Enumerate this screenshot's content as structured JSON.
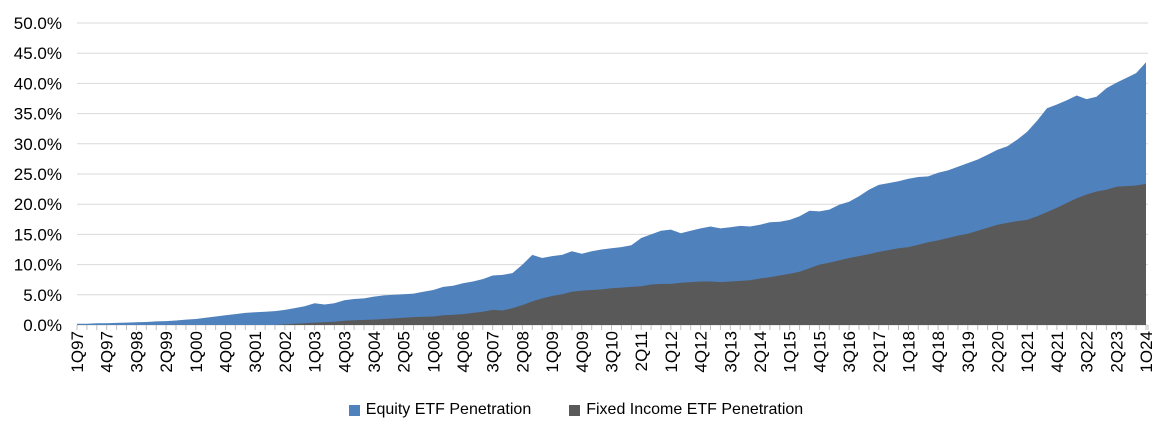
{
  "chart_data": {
    "type": "area",
    "overlay": true,
    "ylim": [
      0,
      50
    ],
    "y_tick_step": 5,
    "y_tick_labels": [
      "0.0%",
      "5.0%",
      "10.0%",
      "15.0%",
      "20.0%",
      "25.0%",
      "30.0%",
      "35.0%",
      "40.0%",
      "45.0%",
      "50.0%"
    ],
    "x_label_every": 3,
    "x_tick_labels_shown": [
      "1Q97",
      "4Q97",
      "3Q98",
      "2Q99",
      "1Q00",
      "4Q00",
      "3Q01",
      "2Q02",
      "1Q03",
      "4Q03",
      "3Q04",
      "2Q05",
      "1Q06",
      "4Q06",
      "3Q07",
      "2Q08",
      "1Q09",
      "4Q09",
      "3Q10",
      "2Q11",
      "1Q12",
      "4Q12",
      "3Q13",
      "2Q14",
      "1Q15",
      "4Q15",
      "3Q16",
      "2Q17",
      "1Q18",
      "4Q18",
      "3Q19",
      "2Q20",
      "1Q21",
      "4Q21",
      "3Q22",
      "2Q23",
      "1Q24"
    ],
    "x": [
      "1Q97",
      "2Q97",
      "3Q97",
      "4Q97",
      "1Q98",
      "2Q98",
      "3Q98",
      "4Q98",
      "1Q99",
      "2Q99",
      "3Q99",
      "4Q99",
      "1Q00",
      "2Q00",
      "3Q00",
      "4Q00",
      "1Q01",
      "2Q01",
      "3Q01",
      "4Q01",
      "1Q02",
      "2Q02",
      "3Q02",
      "4Q02",
      "1Q03",
      "2Q03",
      "3Q03",
      "4Q03",
      "1Q04",
      "2Q04",
      "3Q04",
      "4Q04",
      "1Q05",
      "2Q05",
      "3Q05",
      "4Q05",
      "1Q06",
      "2Q06",
      "3Q06",
      "4Q06",
      "1Q07",
      "2Q07",
      "3Q07",
      "4Q07",
      "1Q08",
      "2Q08",
      "3Q08",
      "4Q08",
      "1Q09",
      "2Q09",
      "3Q09",
      "4Q09",
      "1Q10",
      "2Q10",
      "3Q10",
      "4Q10",
      "1Q11",
      "2Q11",
      "3Q11",
      "4Q11",
      "1Q12",
      "2Q12",
      "3Q12",
      "4Q12",
      "1Q13",
      "2Q13",
      "3Q13",
      "4Q13",
      "1Q14",
      "2Q14",
      "3Q14",
      "4Q14",
      "1Q15",
      "2Q15",
      "3Q15",
      "4Q15",
      "1Q16",
      "2Q16",
      "3Q16",
      "4Q16",
      "1Q17",
      "2Q17",
      "3Q17",
      "4Q17",
      "1Q18",
      "2Q18",
      "3Q18",
      "4Q18",
      "1Q19",
      "2Q19",
      "3Q19",
      "4Q19",
      "1Q20",
      "2Q20",
      "3Q20",
      "4Q20",
      "1Q21",
      "2Q21",
      "3Q21",
      "4Q21",
      "1Q22",
      "2Q22",
      "3Q22",
      "4Q22",
      "1Q23",
      "2Q23",
      "3Q23",
      "4Q23",
      "1Q24"
    ],
    "series": [
      {
        "name": "Equity ETF Penetration",
        "color": "#4F81BD",
        "values": [
          0.2,
          0.2,
          0.3,
          0.3,
          0.35,
          0.4,
          0.45,
          0.5,
          0.6,
          0.65,
          0.75,
          0.9,
          1.0,
          1.2,
          1.4,
          1.6,
          1.8,
          2.0,
          2.1,
          2.2,
          2.3,
          2.5,
          2.8,
          3.1,
          3.6,
          3.4,
          3.6,
          4.1,
          4.3,
          4.4,
          4.7,
          4.9,
          5.0,
          5.1,
          5.2,
          5.5,
          5.8,
          6.3,
          6.5,
          6.9,
          7.2,
          7.6,
          8.2,
          8.3,
          8.6,
          10.0,
          11.6,
          11.1,
          11.4,
          11.6,
          12.2,
          11.8,
          12.2,
          12.5,
          12.7,
          12.9,
          13.2,
          14.4,
          15.0,
          15.6,
          15.8,
          15.2,
          15.6,
          16.0,
          16.3,
          16.0,
          16.2,
          16.4,
          16.3,
          16.6,
          17.0,
          17.1,
          17.4,
          18.0,
          18.9,
          18.8,
          19.1,
          19.9,
          20.4,
          21.3,
          22.4,
          23.2,
          23.5,
          23.8,
          24.2,
          24.5,
          24.6,
          25.2,
          25.6,
          26.2,
          26.8,
          27.4,
          28.2,
          29.0,
          29.6,
          30.7,
          32.0,
          33.8,
          35.9,
          36.5,
          37.2,
          38.0,
          37.4,
          37.8,
          39.2,
          40.1,
          40.9,
          41.7,
          43.5
        ]
      },
      {
        "name": "Fixed Income ETF Penetration",
        "color": "#595959",
        "values": [
          0,
          0,
          0,
          0,
          0,
          0,
          0,
          0,
          0,
          0,
          0,
          0,
          0,
          0,
          0,
          0,
          0,
          0,
          0,
          0,
          0,
          0.1,
          0.2,
          0.3,
          0.4,
          0.45,
          0.55,
          0.7,
          0.8,
          0.85,
          0.9,
          1.0,
          1.1,
          1.2,
          1.3,
          1.35,
          1.4,
          1.6,
          1.7,
          1.8,
          2.0,
          2.2,
          2.5,
          2.4,
          2.8,
          3.3,
          3.9,
          4.4,
          4.8,
          5.1,
          5.5,
          5.7,
          5.8,
          5.9,
          6.1,
          6.2,
          6.3,
          6.4,
          6.7,
          6.8,
          6.8,
          7.0,
          7.1,
          7.2,
          7.2,
          7.1,
          7.2,
          7.3,
          7.4,
          7.7,
          7.9,
          8.2,
          8.5,
          8.8,
          9.4,
          10.0,
          10.3,
          10.7,
          11.1,
          11.4,
          11.7,
          12.1,
          12.4,
          12.7,
          12.9,
          13.3,
          13.7,
          14.0,
          14.4,
          14.8,
          15.1,
          15.6,
          16.1,
          16.6,
          16.9,
          17.2,
          17.4,
          18.0,
          18.7,
          19.4,
          20.2,
          21.0,
          21.6,
          22.1,
          22.4,
          22.9,
          23.0,
          23.1,
          23.4
        ]
      }
    ],
    "grid": "horizontal",
    "legend_position": "bottom-center",
    "colors": {
      "background": "#FFFFFF",
      "gridline": "#D9D9D9",
      "axis": "#D9D9D9",
      "tick": "#BFBFBF",
      "text": "#000000"
    }
  }
}
